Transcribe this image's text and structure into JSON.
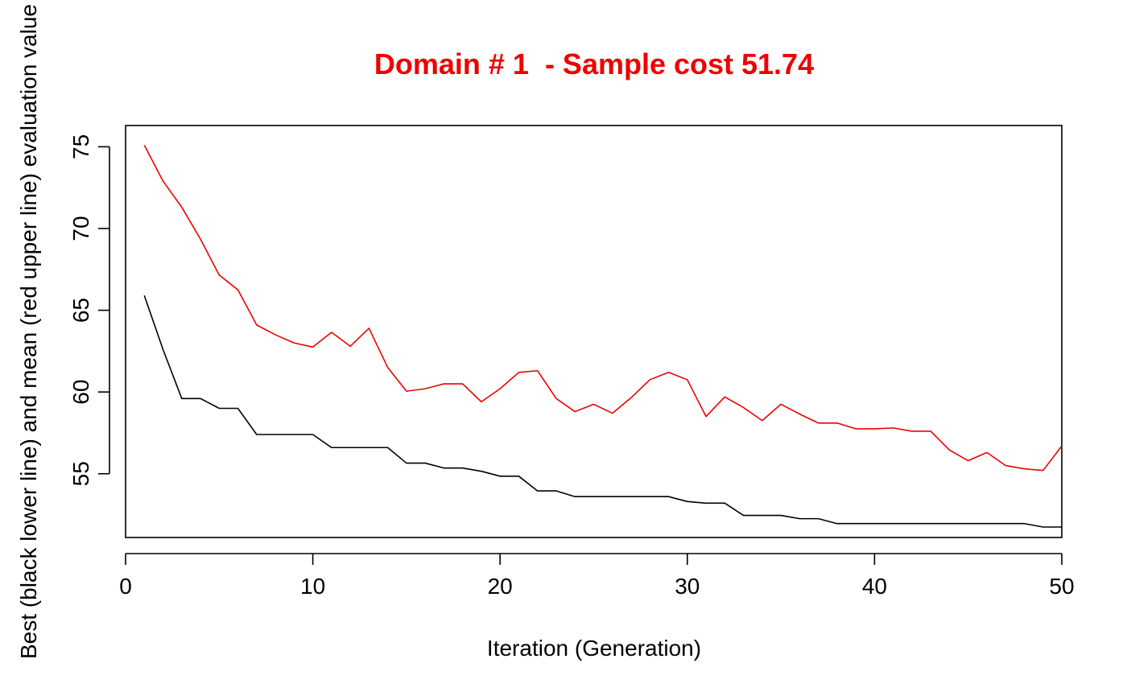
{
  "chart_data": {
    "type": "line",
    "title": "Domain # 1  - Sample cost 51.74",
    "xlabel": "Iteration (Generation)",
    "ylabel": "Best (black lower line) and mean (red upper line) evaluation value",
    "xlim": [
      0,
      50
    ],
    "ylim": [
      51.1,
      76.3
    ],
    "x_ticks": [
      0,
      10,
      20,
      30,
      40,
      50
    ],
    "y_ticks": [
      55,
      60,
      65,
      70,
      75
    ],
    "grid": false,
    "x": [
      1,
      2,
      3,
      4,
      5,
      6,
      7,
      8,
      9,
      10,
      11,
      12,
      13,
      14,
      15,
      16,
      17,
      18,
      19,
      20,
      21,
      22,
      23,
      24,
      25,
      26,
      27,
      28,
      29,
      30,
      31,
      32,
      33,
      34,
      35,
      36,
      37,
      38,
      39,
      40,
      41,
      42,
      43,
      44,
      45,
      46,
      47,
      48,
      49,
      50
    ],
    "series": [
      {
        "color": "#000000",
        "values": [
          65.9,
          62.6,
          59.6,
          59.6,
          59.0,
          59.0,
          57.4,
          57.4,
          57.4,
          57.4,
          56.6,
          56.6,
          56.6,
          56.6,
          55.65,
          55.65,
          55.35,
          55.35,
          55.15,
          54.85,
          54.85,
          53.95,
          53.95,
          53.6,
          53.6,
          53.6,
          53.6,
          53.6,
          53.6,
          53.3,
          53.2,
          53.2,
          52.45,
          52.45,
          52.45,
          52.25,
          52.25,
          51.95,
          51.95,
          51.95,
          51.95,
          51.95,
          51.95,
          51.95,
          51.95,
          51.95,
          51.95,
          51.95,
          51.74,
          51.74
        ]
      },
      {
        "color": "#ee0000",
        "values": [
          75.1,
          72.9,
          71.3,
          69.35,
          67.15,
          66.25,
          64.1,
          63.5,
          63.0,
          62.75,
          63.65,
          62.8,
          63.9,
          61.5,
          60.05,
          60.2,
          60.5,
          60.5,
          59.4,
          60.2,
          61.2,
          61.3,
          59.6,
          58.8,
          59.25,
          58.7,
          59.65,
          60.75,
          61.2,
          60.75,
          58.5,
          59.7,
          59.05,
          58.25,
          59.25,
          58.65,
          58.1,
          58.1,
          57.75,
          57.75,
          57.8,
          57.6,
          57.6,
          56.45,
          55.8,
          56.3,
          55.5,
          55.3,
          55.2,
          56.7
        ]
      }
    ]
  }
}
